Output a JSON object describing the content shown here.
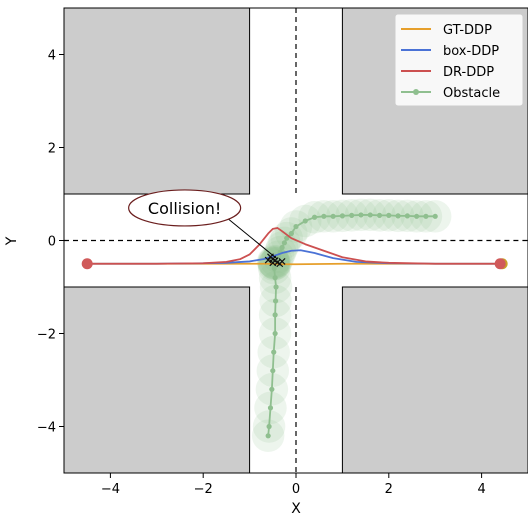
{
  "chart_data": {
    "type": "line",
    "title": "",
    "xlabel": "X",
    "ylabel": "Y",
    "xlim": [
      -5,
      5
    ],
    "ylim": [
      -5,
      5
    ],
    "xticks": [
      -4,
      -2,
      0,
      2,
      4
    ],
    "yticks": [
      -4,
      -2,
      0,
      2,
      4
    ],
    "xtick_labels": [
      "−4",
      "−2",
      "0",
      "2",
      "4"
    ],
    "ytick_labels": [
      "−4",
      "−2",
      "0",
      "2",
      "4"
    ],
    "grid": false,
    "legend_position": "top-right",
    "obstacles": [
      {
        "x0": -5,
        "x1": -1,
        "y0": 1,
        "y1": 5
      },
      {
        "x0": 1,
        "x1": 5,
        "y0": 1,
        "y1": 5
      },
      {
        "x0": -5,
        "x1": -1,
        "y0": -5,
        "y1": -1
      },
      {
        "x0": 1,
        "x1": 5,
        "y0": -5,
        "y1": -1
      }
    ],
    "obstacle_color": "#cccccc",
    "lane_lines": {
      "horizontal_y": 0,
      "vertical_x": 0
    },
    "start_point": [
      -4.5,
      -0.5
    ],
    "goal_point": [
      4.4,
      -0.5
    ],
    "endpoint_color": "#d05a5a",
    "series": [
      {
        "name": "GT-DDP",
        "color": "#e69f2b",
        "x": [
          -4.5,
          -3,
          -2,
          -1,
          -0.6,
          -0.5,
          -0.3,
          0,
          1,
          2,
          3,
          4.4
        ],
        "y": [
          -0.5,
          -0.5,
          -0.5,
          -0.5,
          -0.5,
          -0.5,
          -0.51,
          -0.51,
          -0.5,
          -0.5,
          -0.5,
          -0.5
        ]
      },
      {
        "name": "box-DDP",
        "color": "#4a72d6",
        "x": [
          -4.5,
          -3,
          -2,
          -1.5,
          -1,
          -0.7,
          -0.5,
          -0.3,
          -0.1,
          0.1,
          0.4,
          0.8,
          1.3,
          2,
          3,
          4.4
        ],
        "y": [
          -0.5,
          -0.5,
          -0.49,
          -0.48,
          -0.45,
          -0.4,
          -0.34,
          -0.27,
          -0.22,
          -0.21,
          -0.27,
          -0.38,
          -0.46,
          -0.49,
          -0.5,
          -0.5
        ]
      },
      {
        "name": "DR-DDP",
        "color": "#cc5050",
        "x": [
          -4.5,
          -3,
          -2,
          -1.5,
          -1.2,
          -1,
          -0.8,
          -0.6,
          -0.5,
          -0.4,
          -0.3,
          -0.1,
          0.2,
          0.6,
          1,
          1.5,
          2,
          3,
          4.4
        ],
        "y": [
          -0.5,
          -0.5,
          -0.49,
          -0.46,
          -0.4,
          -0.3,
          -0.1,
          0.15,
          0.25,
          0.27,
          0.2,
          0.05,
          -0.08,
          -0.22,
          -0.36,
          -0.45,
          -0.48,
          -0.5,
          -0.5
        ]
      },
      {
        "name": "Obstacle",
        "color": "#8fbf8f",
        "marker": "circle",
        "x": [
          -0.6,
          -0.58,
          -0.55,
          -0.52,
          -0.5,
          -0.48,
          -0.45,
          -0.45,
          -0.44,
          -0.43,
          -0.45,
          -0.47,
          -0.48,
          -0.48,
          -0.49,
          -0.48,
          -0.46,
          -0.45,
          -0.42,
          -0.38,
          -0.34,
          -0.3,
          -0.25,
          -0.2,
          -0.1,
          0.0,
          0.2,
          0.4,
          0.6,
          0.8,
          1.0,
          1.2,
          1.4,
          1.6,
          1.8,
          2.0,
          2.2,
          2.4,
          2.6,
          2.8,
          3.0
        ],
        "y": [
          -4.2,
          -4.0,
          -3.6,
          -3.2,
          -2.8,
          -2.4,
          -2.0,
          -1.6,
          -1.3,
          -1.0,
          -0.8,
          -0.6,
          -0.52,
          -0.48,
          -0.45,
          -0.47,
          -0.49,
          -0.5,
          -0.45,
          -0.35,
          -0.25,
          -0.15,
          -0.05,
          0.05,
          0.15,
          0.3,
          0.42,
          0.5,
          0.52,
          0.52,
          0.53,
          0.54,
          0.55,
          0.55,
          0.54,
          0.54,
          0.53,
          0.53,
          0.52,
          0.52,
          0.52
        ]
      }
    ],
    "annotations": [
      {
        "text": "Collision!",
        "target": [
          -0.4,
          -0.4
        ],
        "anchor": [
          -2.4,
          0.7
        ]
      }
    ]
  }
}
